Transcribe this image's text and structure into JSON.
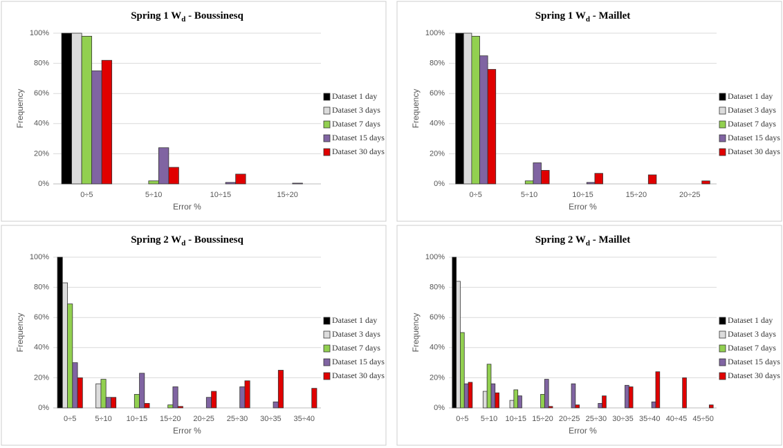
{
  "chart_data": [
    {
      "type": "bar",
      "title": [
        "Spring 1 W",
        "d",
        " - Boussinesq"
      ],
      "x_label": "Error %",
      "y_label": "Frequency",
      "categories": [
        "0÷5",
        "5÷10",
        "10÷15",
        "15÷20"
      ],
      "series": [
        {
          "name": "Dataset 1 day",
          "color": "#000000",
          "values": [
            100,
            0,
            0,
            0
          ]
        },
        {
          "name": "Dataset 3 days",
          "color": "#dcdcdc",
          "values": [
            100,
            0,
            0,
            0
          ]
        },
        {
          "name": "Dataset 7 days",
          "color": "#92d050",
          "values": [
            98,
            2,
            0,
            0
          ]
        },
        {
          "name": "Dataset 15 days",
          "color": "#8064a2",
          "values": [
            75,
            24,
            1,
            0.5
          ]
        },
        {
          "name": "Dataset 30 days",
          "color": "#e00000",
          "values": [
            82,
            11,
            6.5,
            0
          ]
        }
      ],
      "ylim": [
        0,
        100
      ],
      "yticks": [
        {
          "value": 0,
          "label": "0%"
        },
        {
          "value": 20,
          "label": "20%"
        },
        {
          "value": 40,
          "label": "40%"
        },
        {
          "value": 60,
          "label": "60%"
        },
        {
          "value": 80,
          "label": "80%"
        },
        {
          "value": 100,
          "label": "100%"
        }
      ],
      "grid": true,
      "legend": "right"
    },
    {
      "type": "bar",
      "title": [
        "Spring 1 W",
        "d",
        " - Maillet"
      ],
      "x_label": "Error %",
      "y_label": "Frequency",
      "categories": [
        "0÷5",
        "5÷10",
        "10÷15",
        "15÷20",
        "20÷25"
      ],
      "series": [
        {
          "name": "Dataset 1 day",
          "color": "#000000",
          "values": [
            100,
            0,
            0,
            0,
            0
          ]
        },
        {
          "name": "Dataset 3 days",
          "color": "#dcdcdc",
          "values": [
            100,
            0,
            0,
            0,
            0
          ]
        },
        {
          "name": "Dataset 7 days",
          "color": "#92d050",
          "values": [
            98,
            2,
            0,
            0,
            0
          ]
        },
        {
          "name": "Dataset 15 days",
          "color": "#8064a2",
          "values": [
            85,
            14,
            1,
            0,
            0
          ]
        },
        {
          "name": "Dataset 30 days",
          "color": "#e00000",
          "values": [
            76,
            9,
            7,
            6,
            2
          ]
        }
      ],
      "ylim": [
        0,
        100
      ],
      "yticks": [
        {
          "value": 0,
          "label": "0%"
        },
        {
          "value": 20,
          "label": "20%"
        },
        {
          "value": 40,
          "label": "40%"
        },
        {
          "value": 60,
          "label": "60%"
        },
        {
          "value": 80,
          "label": "80%"
        },
        {
          "value": 100,
          "label": "100%"
        }
      ],
      "grid": true,
      "legend": "right"
    },
    {
      "type": "bar",
      "title": [
        "Spring 2 W",
        "d",
        " - Boussinesq"
      ],
      "x_label": "Error %",
      "y_label": "Frequency",
      "categories": [
        "0÷5",
        "5÷10",
        "10÷15",
        "15÷20",
        "20÷25",
        "25÷30",
        "30÷35",
        "35÷40"
      ],
      "series": [
        {
          "name": "Dataset 1 day",
          "color": "#000000",
          "values": [
            100,
            0,
            0,
            0,
            0,
            0,
            0,
            0
          ]
        },
        {
          "name": "Dataset 3 days",
          "color": "#dcdcdc",
          "values": [
            83,
            16,
            0,
            0,
            0,
            0,
            0,
            0
          ]
        },
        {
          "name": "Dataset 7 days",
          "color": "#92d050",
          "values": [
            69,
            19,
            9,
            2,
            0,
            0,
            0,
            0
          ]
        },
        {
          "name": "Dataset 15 days",
          "color": "#8064a2",
          "values": [
            30,
            7,
            23,
            14,
            7,
            14,
            4,
            0
          ]
        },
        {
          "name": "Dataset 30 days",
          "color": "#e00000",
          "values": [
            20,
            7,
            3,
            1,
            11,
            18,
            25,
            13
          ]
        }
      ],
      "ylim": [
        0,
        100
      ],
      "yticks": [
        {
          "value": 0,
          "label": "0%"
        },
        {
          "value": 20,
          "label": "20%"
        },
        {
          "value": 40,
          "label": "40%"
        },
        {
          "value": 60,
          "label": "60%"
        },
        {
          "value": 80,
          "label": "80%"
        },
        {
          "value": 100,
          "label": "100%"
        }
      ],
      "grid": true,
      "legend": "right"
    },
    {
      "type": "bar",
      "title": [
        "Spring 2 W",
        "d",
        " - Maillet"
      ],
      "x_label": "Error %",
      "y_label": "Frequency",
      "categories": [
        "0÷5",
        "5÷10",
        "10÷15",
        "15÷20",
        "20÷25",
        "25÷30",
        "30÷35",
        "35÷40",
        "40÷45",
        "45÷50"
      ],
      "series": [
        {
          "name": "Dataset 1 day",
          "color": "#000000",
          "values": [
            100,
            0,
            0,
            0,
            0,
            0,
            0,
            0,
            0,
            0
          ]
        },
        {
          "name": "Dataset 3 days",
          "color": "#dcdcdc",
          "values": [
            84,
            11,
            5,
            0,
            0,
            0,
            0,
            0,
            0,
            0
          ]
        },
        {
          "name": "Dataset 7 days",
          "color": "#92d050",
          "values": [
            50,
            29,
            12,
            9,
            0,
            0,
            0,
            0,
            0,
            0
          ]
        },
        {
          "name": "Dataset 15 days",
          "color": "#8064a2",
          "values": [
            16,
            16,
            8,
            19,
            16,
            3,
            15,
            4,
            0,
            0
          ]
        },
        {
          "name": "Dataset 30 days",
          "color": "#e00000",
          "values": [
            17,
            10,
            0,
            1,
            2,
            8,
            14,
            24,
            20,
            2
          ]
        }
      ],
      "ylim": [
        0,
        100
      ],
      "yticks": [
        {
          "value": 0,
          "label": "0%"
        },
        {
          "value": 20,
          "label": "20%"
        },
        {
          "value": 40,
          "label": "40%"
        },
        {
          "value": 60,
          "label": "60%"
        },
        {
          "value": 80,
          "label": "80%"
        },
        {
          "value": 100,
          "label": "100%"
        }
      ],
      "grid": true,
      "legend": "right"
    }
  ]
}
